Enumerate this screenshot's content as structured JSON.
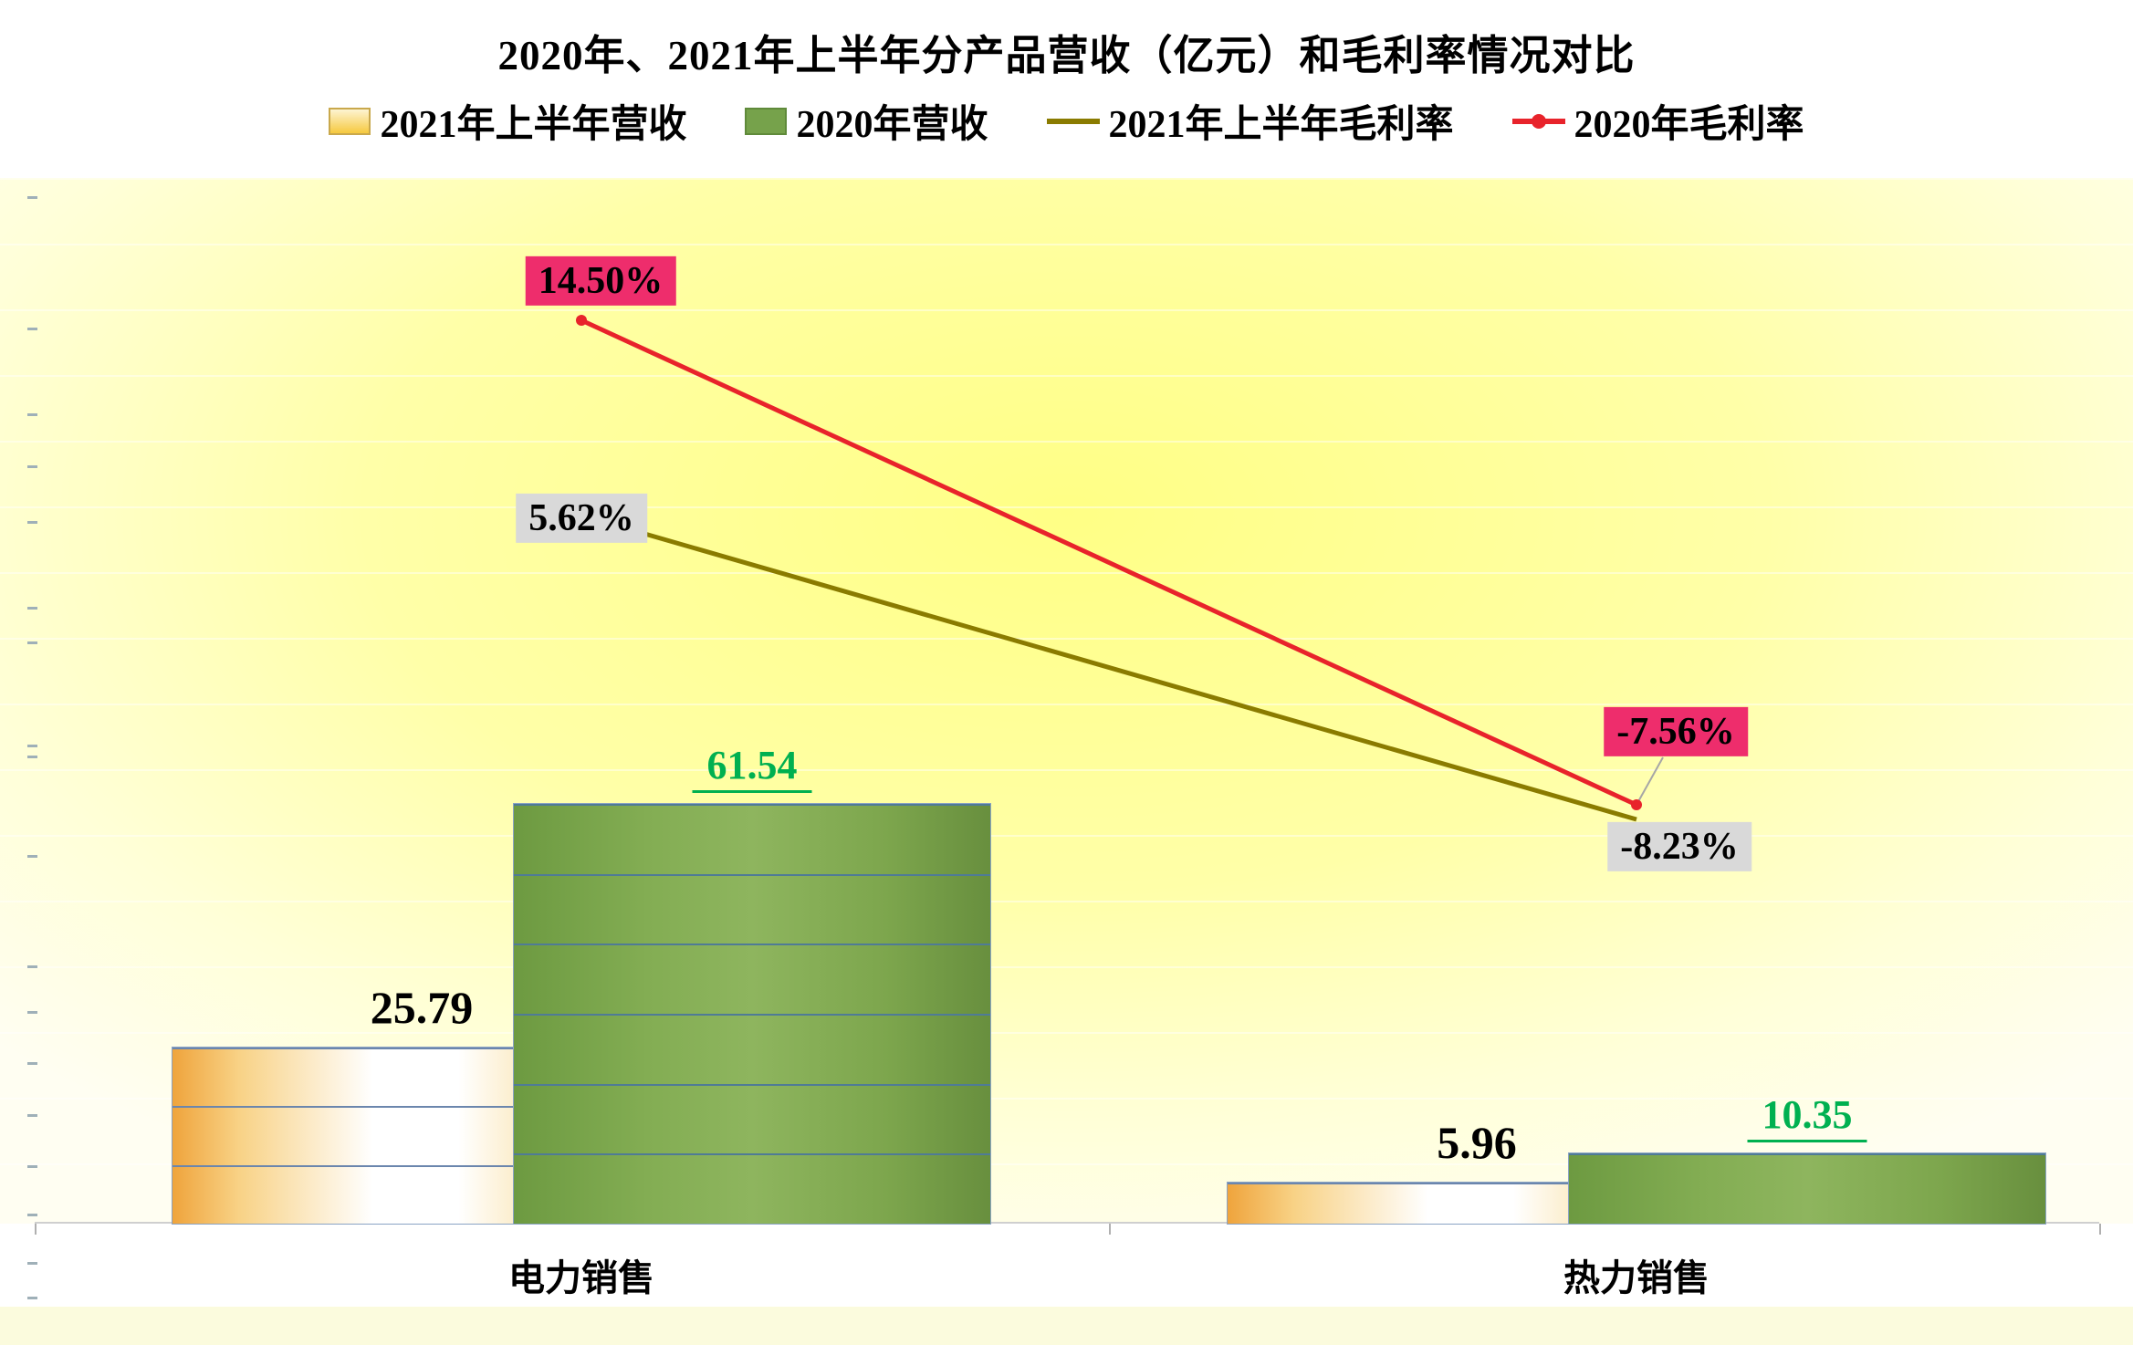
{
  "title": "2020年、2021年上半年分产品营收（亿元）和毛利率情况对比",
  "colors": {
    "bar_2021_revenue": "#F3B13C",
    "bar_2020_revenue": "#7BA352",
    "line_2021_margin": "#8A7B00",
    "line_2020_margin": "#E8232B",
    "green_value_label": "#00B050",
    "pink_label_bg": "#EE2D6C",
    "gray_label_bg": "#D9D9D9"
  },
  "chart_data": {
    "type": "combo",
    "title": "2020年、2021年上半年分产品营收（亿元）和毛利率情况对比",
    "categories": [
      "电力销售",
      "热力销售"
    ],
    "category_keys": [
      "electricity-sales",
      "heat-sales"
    ],
    "legend_position": "top",
    "series": [
      {
        "name": "2021年上半年营收",
        "key": "2021h1-revenue",
        "type": "bar",
        "axis": "revenue",
        "values": [
          25.79,
          5.96
        ],
        "labels": [
          "25.79",
          "5.96"
        ],
        "color": "#F3B13C",
        "label_color": "#000000"
      },
      {
        "name": "2020年营收",
        "key": "2020-revenue",
        "type": "bar",
        "axis": "revenue",
        "values": [
          61.54,
          10.35
        ],
        "labels": [
          "61.54",
          "10.35"
        ],
        "color": "#7BA352",
        "label_color": "#00B050"
      },
      {
        "name": "2021年上半年毛利率",
        "key": "2021h1-margin",
        "type": "line",
        "axis": "percent",
        "values": [
          5.62,
          -8.23
        ],
        "labels": [
          "5.62%",
          "-8.23%"
        ],
        "color": "#8A7B00",
        "label_bg": "#D9D9D9"
      },
      {
        "name": "2020年毛利率",
        "key": "2020-margin",
        "type": "line-marker",
        "axis": "percent",
        "values": [
          14.5,
          -7.56
        ],
        "labels": [
          "14.50%",
          "-7.56%"
        ],
        "color": "#E8232B",
        "label_bg": "#EE2D6C"
      }
    ],
    "axes": {
      "revenue_unit": "亿元",
      "revenue_range": [
        0,
        70
      ],
      "percent_range": [
        -10,
        16
      ],
      "tick_labels_visible": false,
      "grid": "off"
    }
  }
}
